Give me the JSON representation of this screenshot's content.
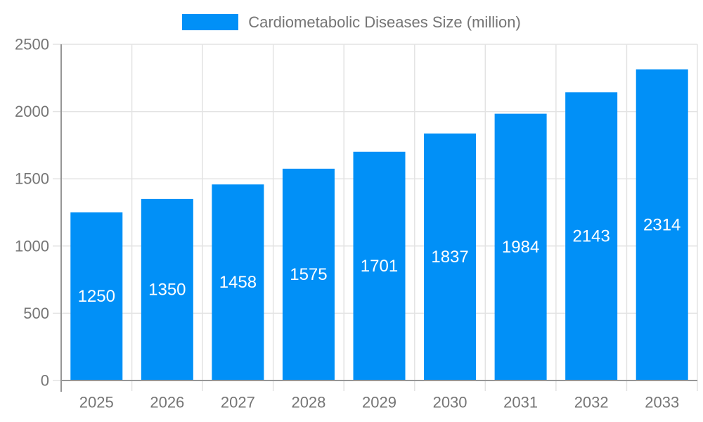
{
  "legend": {
    "label": "Cardiometabolic Diseases Size (million)"
  },
  "chart_data": {
    "type": "bar",
    "title": "",
    "categories": [
      "2025",
      "2026",
      "2027",
      "2028",
      "2029",
      "2030",
      "2031",
      "2032",
      "2033"
    ],
    "series": [
      {
        "name": "Cardiometabolic Diseases Size (million)",
        "values": [
          1250,
          1350,
          1458,
          1575,
          1701,
          1837,
          1984,
          2143,
          2314
        ]
      }
    ],
    "xlabel": "",
    "ylabel": "",
    "ylim": [
      0,
      2500
    ],
    "yticks": [
      0,
      500,
      1000,
      1500,
      2000,
      2500
    ],
    "grid": true,
    "legend_position": "top-center",
    "data_labels": "inside-center-white"
  },
  "colors": {
    "bar": "#0190f7",
    "grid": "#e3e3e3",
    "axis": "#969696",
    "tick_text": "#757575",
    "legend_text": "#757575",
    "bar_label": "#ffffff",
    "background": "#ffffff"
  }
}
